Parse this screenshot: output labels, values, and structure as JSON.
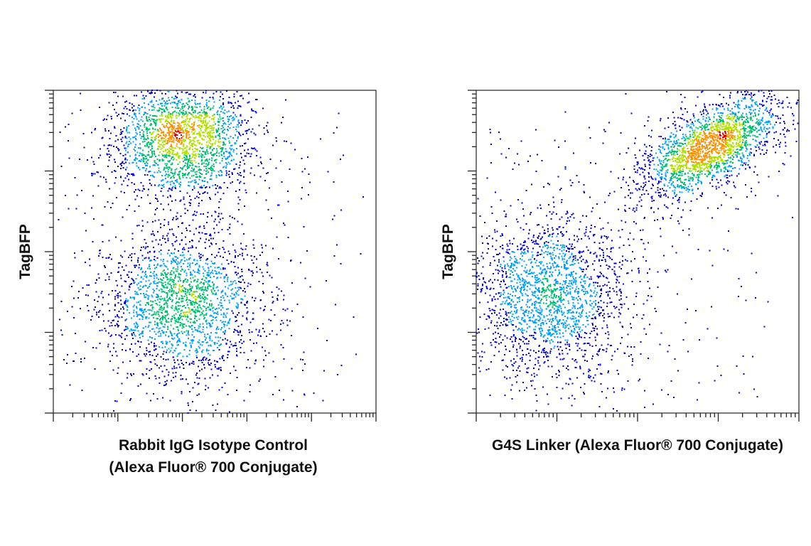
{
  "figure": {
    "panels": [
      "left",
      "right"
    ]
  },
  "chart_data": [
    {
      "type": "scatter",
      "subtype": "flow-cytometry-density-dot-plot",
      "title": "",
      "xlabel_lines": [
        "Rabbit IgG Isotype Control",
        "(Alexa Fluor® 700 Conjugate)"
      ],
      "ylabel": "TagBFP",
      "x_scale": "log",
      "y_scale": "log",
      "x_decades": 5,
      "y_decades": 4,
      "tick_labels": "none",
      "grid": false,
      "legend": "none",
      "color_scale": [
        "#0000d0",
        "#00a0ff",
        "#00c070",
        "#b0e000",
        "#ff9000",
        "#e00000"
      ],
      "populations": [
        {
          "name": "upper",
          "x_center_decade": 2.0,
          "y_center_decade": 3.4,
          "x_spread": 0.55,
          "y_spread": 0.38,
          "relative_size": 0.52
        },
        {
          "name": "lower",
          "x_center_decade": 2.0,
          "y_center_decade": 1.35,
          "x_spread": 0.6,
          "y_spread": 0.45,
          "relative_size": 0.48
        }
      ]
    },
    {
      "type": "scatter",
      "subtype": "flow-cytometry-density-dot-plot",
      "title": "",
      "xlabel_lines": [
        "G4S Linker (Alexa Fluor® 700 Conjugate)"
      ],
      "ylabel": "TagBFP",
      "x_scale": "log",
      "y_scale": "log",
      "x_decades": 4,
      "y_decades": 4,
      "tick_labels": "none",
      "grid": false,
      "legend": "none",
      "color_scale": [
        "#0000d0",
        "#00a0ff",
        "#00c070",
        "#b0e000",
        "#ff9000",
        "#e00000"
      ],
      "populations": [
        {
          "name": "upper-right",
          "x_center_decade": 2.9,
          "y_center_decade": 3.3,
          "x_spread": 0.45,
          "y_spread": 0.4,
          "correlated": true,
          "relative_size": 0.5
        },
        {
          "name": "lower-left",
          "x_center_decade": 0.9,
          "y_center_decade": 1.45,
          "x_spread": 0.5,
          "y_spread": 0.5,
          "relative_size": 0.5
        }
      ]
    }
  ]
}
